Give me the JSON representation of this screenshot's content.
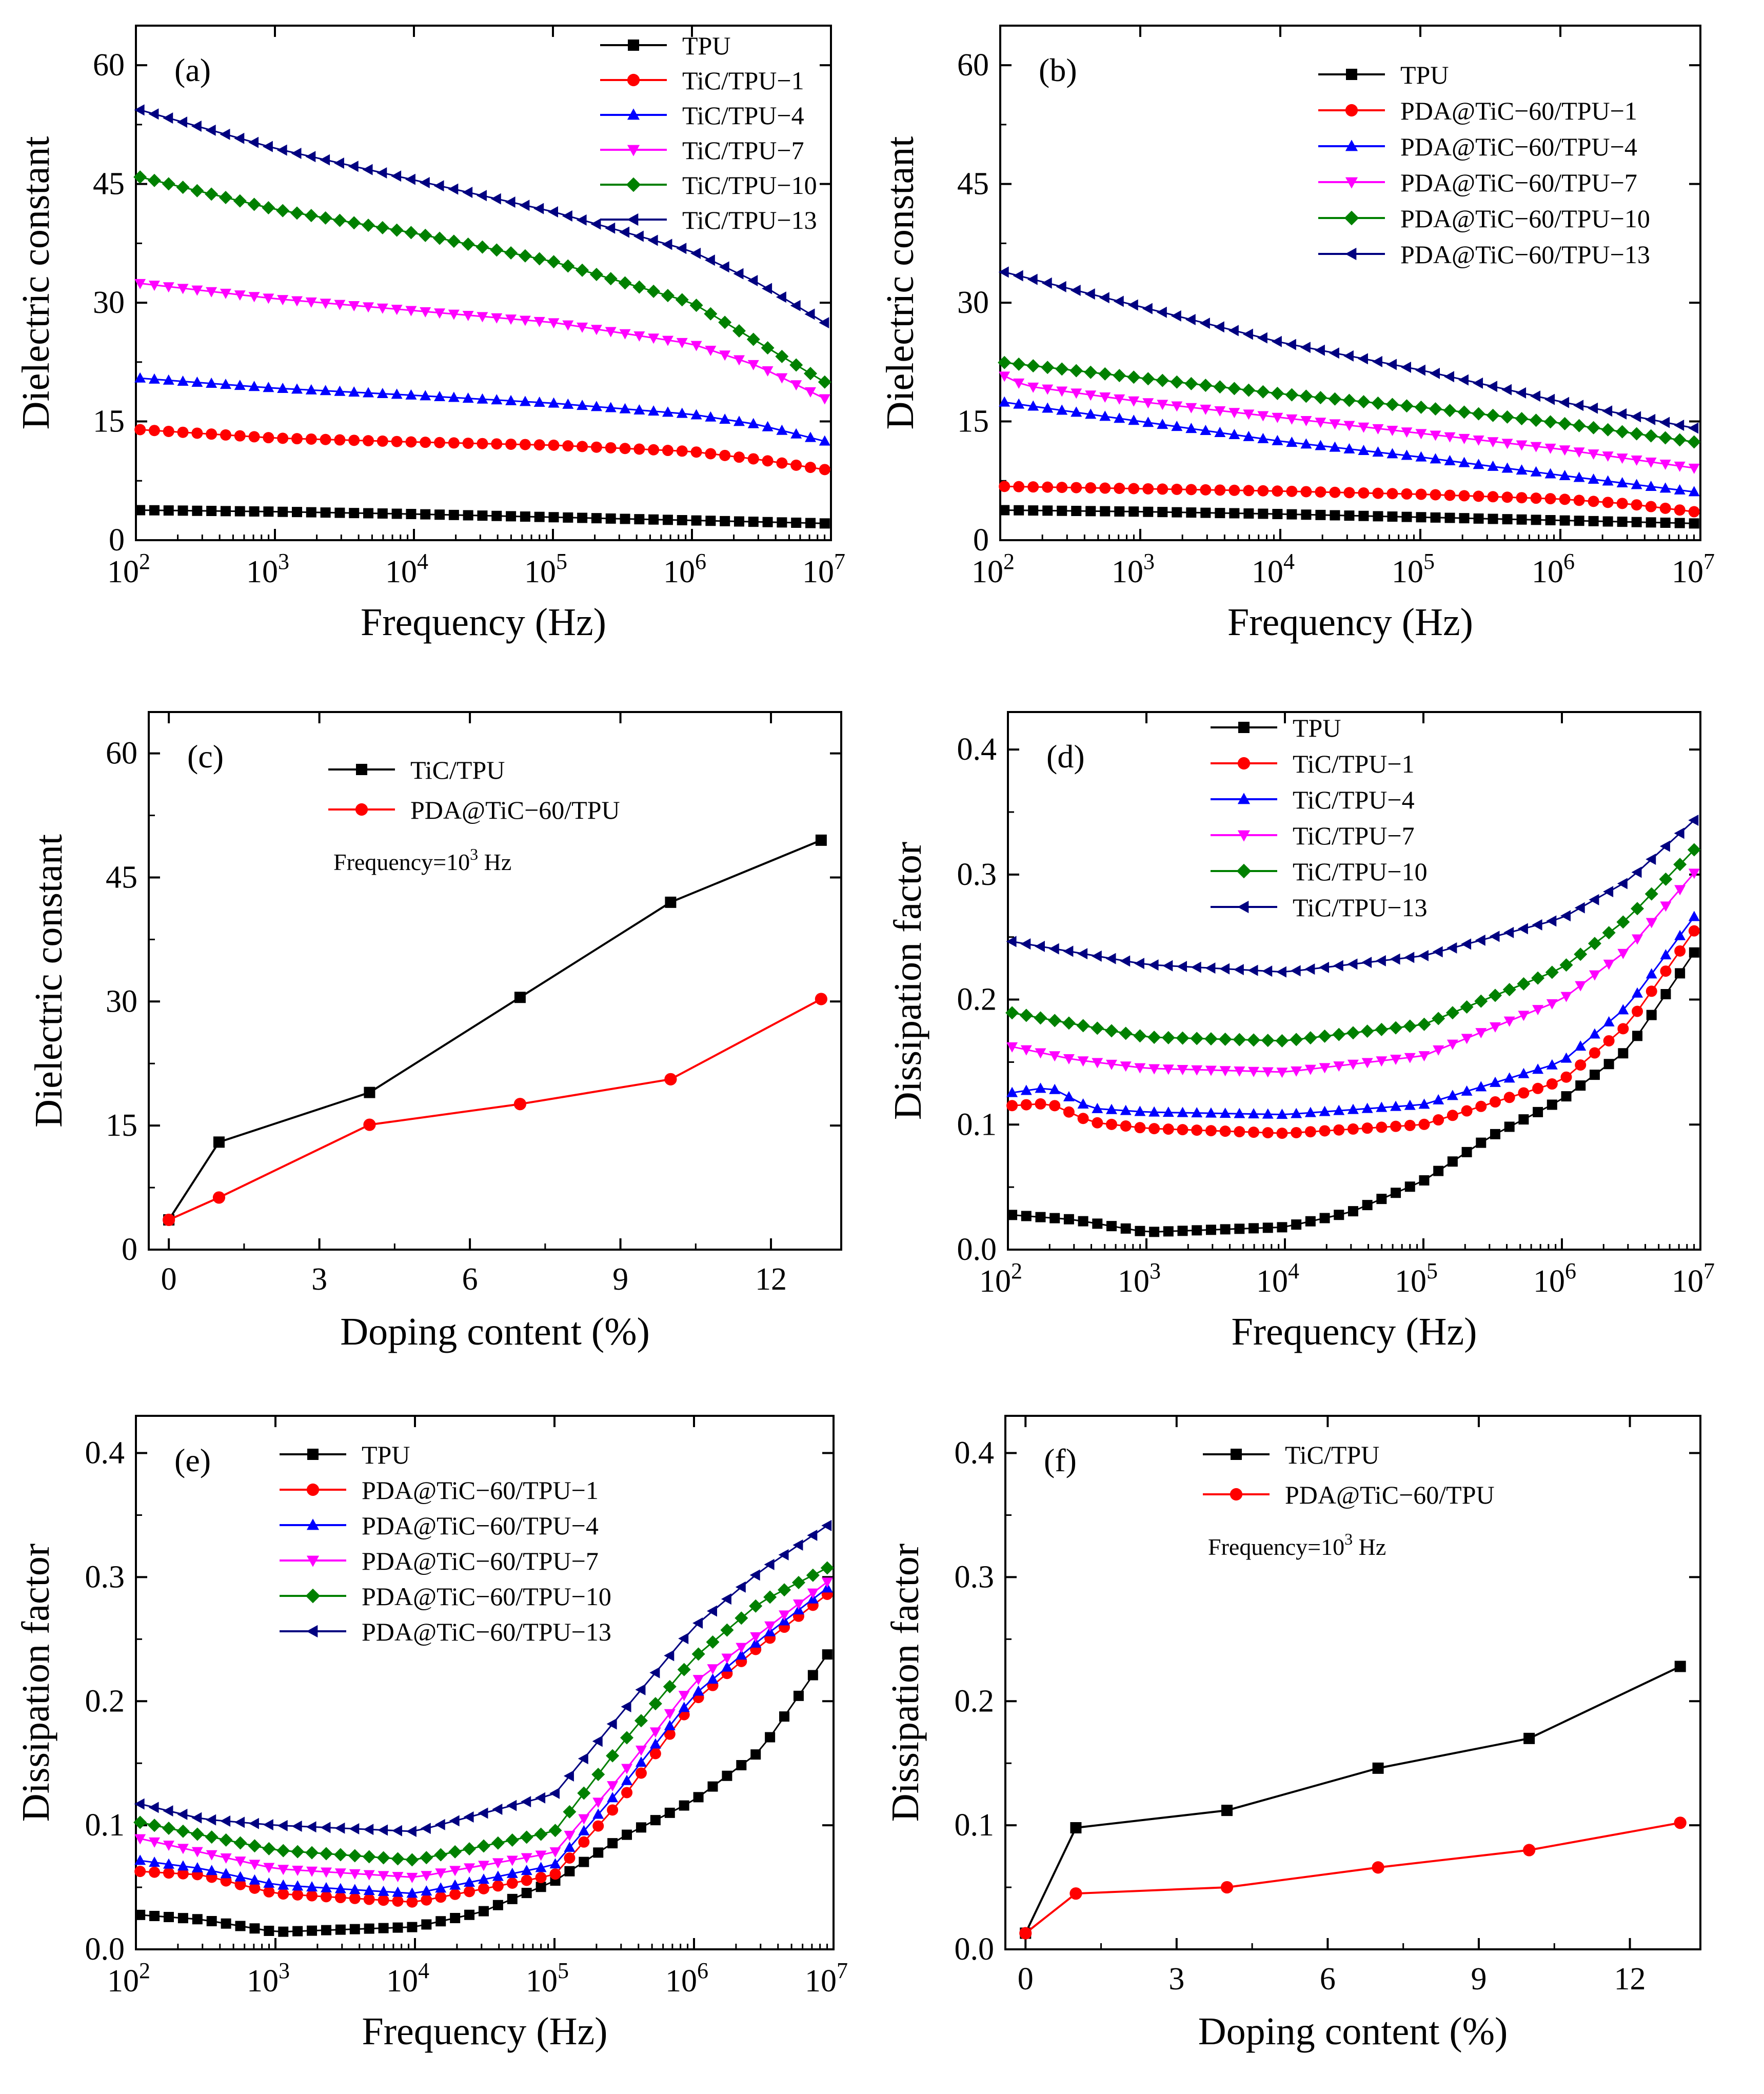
{
  "figure": {
    "colors": {
      "TPU": "#000000",
      "1": "#ff0000",
      "4": "#0000ff",
      "7": "#ff00ff",
      "10": "#008000",
      "13": "#000080"
    }
  },
  "chart_data": [
    {
      "type": "line",
      "id": "a",
      "panel_label": "(a)",
      "xlabel": "Frequency (Hz)",
      "ylabel": "Dielectric constant",
      "xscale": "log",
      "xlim": [
        100,
        10000000
      ],
      "ylim": [
        0,
        65
      ],
      "yticks": [
        0,
        15,
        30,
        45,
        60
      ],
      "xticks": [
        {
          "base": "10",
          "exp": "2"
        },
        {
          "base": "10",
          "exp": "3"
        },
        {
          "base": "10",
          "exp": "4"
        },
        {
          "base": "10",
          "exp": "5"
        },
        {
          "base": "10",
          "exp": "6"
        },
        {
          "base": "10",
          "exp": "7"
        }
      ],
      "legend_position": "top-right",
      "series": [
        {
          "name": "TPU",
          "marker": "square",
          "color_key": "TPU",
          "x": [
            100,
            1000,
            10000,
            100000,
            1000000,
            10000000
          ],
          "y": [
            3.8,
            3.6,
            3.3,
            2.9,
            2.5,
            2.1
          ]
        },
        {
          "name": "TiC/TPU−1",
          "marker": "circle",
          "color_key": "1",
          "x": [
            100,
            1000,
            10000,
            100000,
            1000000,
            3000000,
            10000000
          ],
          "y": [
            14,
            12.9,
            12.4,
            12.0,
            11.2,
            10.2,
            8.8
          ]
        },
        {
          "name": "TiC/TPU−4",
          "marker": "triangle-up",
          "color_key": "4",
          "x": [
            100,
            1000,
            10000,
            100000,
            1000000,
            3000000,
            10000000
          ],
          "y": [
            20.5,
            19.2,
            18.3,
            17.3,
            15.9,
            14.6,
            12.3
          ]
        },
        {
          "name": "TiC/TPU−7",
          "marker": "triangle-down",
          "color_key": "7",
          "x": [
            100,
            1000,
            10000,
            100000,
            1000000,
            3000000,
            10000000
          ],
          "y": [
            32.5,
            30.5,
            29.0,
            27.5,
            24.8,
            22.0,
            17.5
          ]
        },
        {
          "name": "TiC/TPU−10",
          "marker": "diamond",
          "color_key": "10",
          "x": [
            100,
            1000,
            10000,
            100000,
            1000000,
            3000000,
            10000000
          ],
          "y": [
            46,
            41.8,
            38.8,
            35.2,
            30.0,
            25.0,
            19.5
          ]
        },
        {
          "name": "TiC/TPU−13",
          "marker": "triangle-left",
          "color_key": "13",
          "x": [
            100,
            1000,
            10000,
            100000,
            1000000,
            3000000,
            10000000
          ],
          "y": [
            54.5,
            49.5,
            45.5,
            41.5,
            36.5,
            32.5,
            27
          ]
        }
      ]
    },
    {
      "type": "line",
      "id": "b",
      "panel_label": "(b)",
      "xlabel": "Frequency (Hz)",
      "ylabel": "Dielectric constant",
      "xscale": "log",
      "xlim": [
        100,
        10000000
      ],
      "ylim": [
        0,
        65
      ],
      "yticks": [
        0,
        15,
        30,
        45,
        60
      ],
      "xticks": [
        {
          "base": "10",
          "exp": "2"
        },
        {
          "base": "10",
          "exp": "3"
        },
        {
          "base": "10",
          "exp": "4"
        },
        {
          "base": "10",
          "exp": "5"
        },
        {
          "base": "10",
          "exp": "6"
        },
        {
          "base": "10",
          "exp": "7"
        }
      ],
      "legend_position": "top-right",
      "series": [
        {
          "name": "TPU",
          "marker": "square",
          "color_key": "TPU",
          "x": [
            100,
            1000,
            10000,
            100000,
            1000000,
            10000000
          ],
          "y": [
            3.8,
            3.6,
            3.3,
            2.9,
            2.5,
            2.1
          ]
        },
        {
          "name": "PDA@TiC−60/TPU−1",
          "marker": "circle",
          "color_key": "1",
          "x": [
            100,
            1000,
            10000,
            100000,
            1000000,
            3000000,
            10000000
          ],
          "y": [
            6.8,
            6.5,
            6.2,
            5.8,
            5.2,
            4.6,
            3.5
          ]
        },
        {
          "name": "PDA@TiC−60/TPU−4",
          "marker": "triangle-up",
          "color_key": "4",
          "x": [
            100,
            1000,
            10000,
            100000,
            1000000,
            10000000
          ],
          "y": [
            17.5,
            15,
            12.5,
            10.5,
            8.2,
            6
          ]
        },
        {
          "name": "PDA@TiC−60/TPU−7",
          "marker": "triangle-down",
          "color_key": "7",
          "x": [
            100,
            150,
            1000,
            10000,
            100000,
            1000000,
            10000000
          ],
          "y": [
            21,
            19.5,
            17.5,
            15.5,
            13.5,
            11.5,
            9
          ]
        },
        {
          "name": "PDA@TiC−60/TPU−10",
          "marker": "diamond",
          "color_key": "10",
          "x": [
            100,
            1000,
            10000,
            100000,
            1000000,
            10000000
          ],
          "y": [
            22.5,
            20.5,
            18.5,
            16.8,
            14.8,
            12.3
          ]
        },
        {
          "name": "PDA@TiC−60/TPU−13",
          "marker": "triangle-left",
          "color_key": "13",
          "x": [
            100,
            1000,
            10000,
            100000,
            1000000,
            10000000
          ],
          "y": [
            34,
            29.5,
            25,
            21.5,
            17.5,
            14
          ]
        }
      ]
    },
    {
      "type": "line",
      "id": "c",
      "panel_label": "(c)",
      "xlabel": "Doping content (%)",
      "ylabel": "Dielectric constant",
      "xscale": "linear",
      "xlim": [
        -0.4,
        13.4
      ],
      "ylim": [
        0,
        65
      ],
      "xticks_linear": [
        0,
        3,
        6,
        9,
        12
      ],
      "yticks": [
        0,
        15,
        30,
        45,
        60
      ],
      "legend_position": "top-left",
      "annotation": {
        "text": "Frequency=10",
        "sup": "3",
        "suffix": " Hz"
      },
      "series": [
        {
          "name": "TiC/TPU",
          "marker": "square",
          "color_key": "TPU",
          "x": [
            0,
            1,
            4,
            7,
            10,
            13
          ],
          "y": [
            3.6,
            13,
            19,
            30.5,
            42,
            49.5
          ]
        },
        {
          "name": "PDA@TiC−60/TPU",
          "marker": "circle",
          "color_key": "1",
          "x": [
            0,
            1,
            4,
            7,
            10,
            13
          ],
          "y": [
            3.6,
            6.3,
            15.1,
            17.6,
            20.6,
            30.3
          ]
        }
      ]
    },
    {
      "type": "line",
      "id": "d",
      "panel_label": "(d)",
      "xlabel": "Frequency (Hz)",
      "ylabel": "Dissipation factor",
      "xscale": "log",
      "xlim": [
        100,
        10000000
      ],
      "ylim": [
        0,
        0.43
      ],
      "yticks": [
        "0.0",
        "0.1",
        "0.2",
        "0.3",
        "0.4"
      ],
      "xticks": [
        {
          "base": "10",
          "exp": "2"
        },
        {
          "base": "10",
          "exp": "3"
        },
        {
          "base": "10",
          "exp": "4"
        },
        {
          "base": "10",
          "exp": "5"
        },
        {
          "base": "10",
          "exp": "6"
        },
        {
          "base": "10",
          "exp": "7"
        }
      ],
      "legend_position": "top-left",
      "series": [
        {
          "name": "TPU",
          "marker": "square",
          "color_key": "TPU",
          "x": [
            100,
            300,
            1000,
            10000,
            30000,
            100000,
            300000,
            1000000,
            3000000,
            10000000
          ],
          "y": [
            0.028,
            0.024,
            0.014,
            0.018,
            0.03,
            0.055,
            0.09,
            0.12,
            0.16,
            0.245
          ]
        },
        {
          "name": "TiC/TPU−1",
          "marker": "circle",
          "color_key": "1",
          "x": [
            100,
            200,
            400,
            1000,
            10000,
            100000,
            1000000,
            3000000,
            10000000
          ],
          "y": [
            0.115,
            0.117,
            0.102,
            0.097,
            0.093,
            0.1,
            0.135,
            0.18,
            0.262
          ]
        },
        {
          "name": "TiC/TPU−4",
          "marker": "triangle-up",
          "color_key": "4",
          "x": [
            100,
            200,
            400,
            1000,
            10000,
            100000,
            1000000,
            3000000,
            10000000
          ],
          "y": [
            0.125,
            0.13,
            0.113,
            0.11,
            0.108,
            0.116,
            0.15,
            0.195,
            0.273
          ]
        },
        {
          "name": "TiC/TPU−7",
          "marker": "triangle-down",
          "color_key": "7",
          "x": [
            100,
            300,
            1000,
            10000,
            100000,
            1000000,
            3000000,
            10000000
          ],
          "y": [
            0.163,
            0.152,
            0.145,
            0.142,
            0.155,
            0.2,
            0.24,
            0.307
          ]
        },
        {
          "name": "TiC/TPU−10",
          "marker": "diamond",
          "color_key": "10",
          "x": [
            100,
            1000,
            10000,
            100000,
            1000000,
            3000000,
            10000000
          ],
          "y": [
            0.19,
            0.17,
            0.167,
            0.18,
            0.225,
            0.265,
            0.325
          ]
        },
        {
          "name": "TiC/TPU−13",
          "marker": "triangle-left",
          "color_key": "13",
          "x": [
            100,
            1000,
            10000,
            100000,
            1000000,
            3000000,
            10000000
          ],
          "y": [
            0.247,
            0.228,
            0.222,
            0.235,
            0.265,
            0.295,
            0.348
          ]
        }
      ]
    },
    {
      "type": "line",
      "id": "e",
      "panel_label": "(e)",
      "xlabel": "Frequency (Hz)",
      "ylabel": "Dissipation factor",
      "xscale": "log",
      "xlim": [
        100,
        10000000
      ],
      "ylim": [
        0,
        0.43
      ],
      "yticks": [
        "0.0",
        "0.1",
        "0.2",
        "0.3",
        "0.4"
      ],
      "xticks": [
        {
          "base": "10",
          "exp": "2"
        },
        {
          "base": "10",
          "exp": "3"
        },
        {
          "base": "10",
          "exp": "4"
        },
        {
          "base": "10",
          "exp": "5"
        },
        {
          "base": "10",
          "exp": "6"
        },
        {
          "base": "10",
          "exp": "7"
        }
      ],
      "legend_position": "top-left",
      "series": [
        {
          "name": "TPU",
          "marker": "square",
          "color_key": "TPU",
          "x": [
            100,
            300,
            1000,
            10000,
            30000,
            100000,
            300000,
            1000000,
            3000000,
            10000000
          ],
          "y": [
            0.028,
            0.024,
            0.014,
            0.018,
            0.03,
            0.055,
            0.09,
            0.12,
            0.16,
            0.245
          ]
        },
        {
          "name": "PDA@TiC−60/TPU−1",
          "marker": "circle",
          "color_key": "1",
          "x": [
            100,
            300,
            1000,
            10000,
            100000,
            300000,
            1000000,
            3000000,
            10000000
          ],
          "y": [
            0.063,
            0.06,
            0.045,
            0.038,
            0.06,
            0.12,
            0.2,
            0.245,
            0.29
          ]
        },
        {
          "name": "PDA@TiC−60/TPU−4",
          "marker": "triangle-up",
          "color_key": "4",
          "x": [
            100,
            300,
            1000,
            10000,
            100000,
            300000,
            1000000,
            3000000,
            10000000
          ],
          "y": [
            0.072,
            0.065,
            0.052,
            0.045,
            0.068,
            0.13,
            0.205,
            0.25,
            0.295
          ]
        },
        {
          "name": "PDA@TiC−60/TPU−7",
          "marker": "triangle-down",
          "color_key": "7",
          "x": [
            100,
            300,
            1000,
            10000,
            100000,
            300000,
            1000000,
            3000000,
            10000000
          ],
          "y": [
            0.09,
            0.078,
            0.065,
            0.058,
            0.078,
            0.14,
            0.215,
            0.255,
            0.3
          ]
        },
        {
          "name": "PDA@TiC−60/TPU−10",
          "marker": "diamond",
          "color_key": "10",
          "x": [
            100,
            300,
            1000,
            10000,
            100000,
            300000,
            1000000,
            3000000,
            10000000
          ],
          "y": [
            0.103,
            0.092,
            0.08,
            0.072,
            0.095,
            0.165,
            0.235,
            0.28,
            0.31
          ]
        },
        {
          "name": "PDA@TiC−60/TPU−13",
          "marker": "triangle-left",
          "color_key": "13",
          "x": [
            100,
            300,
            1000,
            10000,
            100000,
            300000,
            1000000,
            3000000,
            10000000
          ],
          "y": [
            0.118,
            0.105,
            0.1,
            0.095,
            0.125,
            0.19,
            0.26,
            0.305,
            0.345
          ]
        }
      ]
    },
    {
      "type": "line",
      "id": "f",
      "panel_label": "(f)",
      "xlabel": "Doping content (%)",
      "ylabel": "Dissipation factor",
      "xscale": "linear",
      "xlim": [
        -0.4,
        13.4
      ],
      "ylim": [
        0,
        0.43
      ],
      "xticks_linear": [
        0,
        3,
        6,
        9,
        12
      ],
      "yticks": [
        "0.0",
        "0.1",
        "0.2",
        "0.3",
        "0.4"
      ],
      "legend_position": "top-left",
      "annotation": {
        "text": "Frequency=10",
        "sup": "3",
        "suffix": " Hz"
      },
      "series": [
        {
          "name": "TiC/TPU",
          "marker": "square",
          "color_key": "TPU",
          "x": [
            0,
            1,
            4,
            7,
            10,
            13
          ],
          "y": [
            0.013,
            0.098,
            0.112,
            0.146,
            0.17,
            0.228
          ]
        },
        {
          "name": "PDA@TiC−60/TPU",
          "marker": "circle",
          "color_key": "1",
          "x": [
            0,
            1,
            4,
            7,
            10,
            13
          ],
          "y": [
            0.013,
            0.045,
            0.05,
            0.066,
            0.08,
            0.102
          ]
        }
      ]
    }
  ]
}
